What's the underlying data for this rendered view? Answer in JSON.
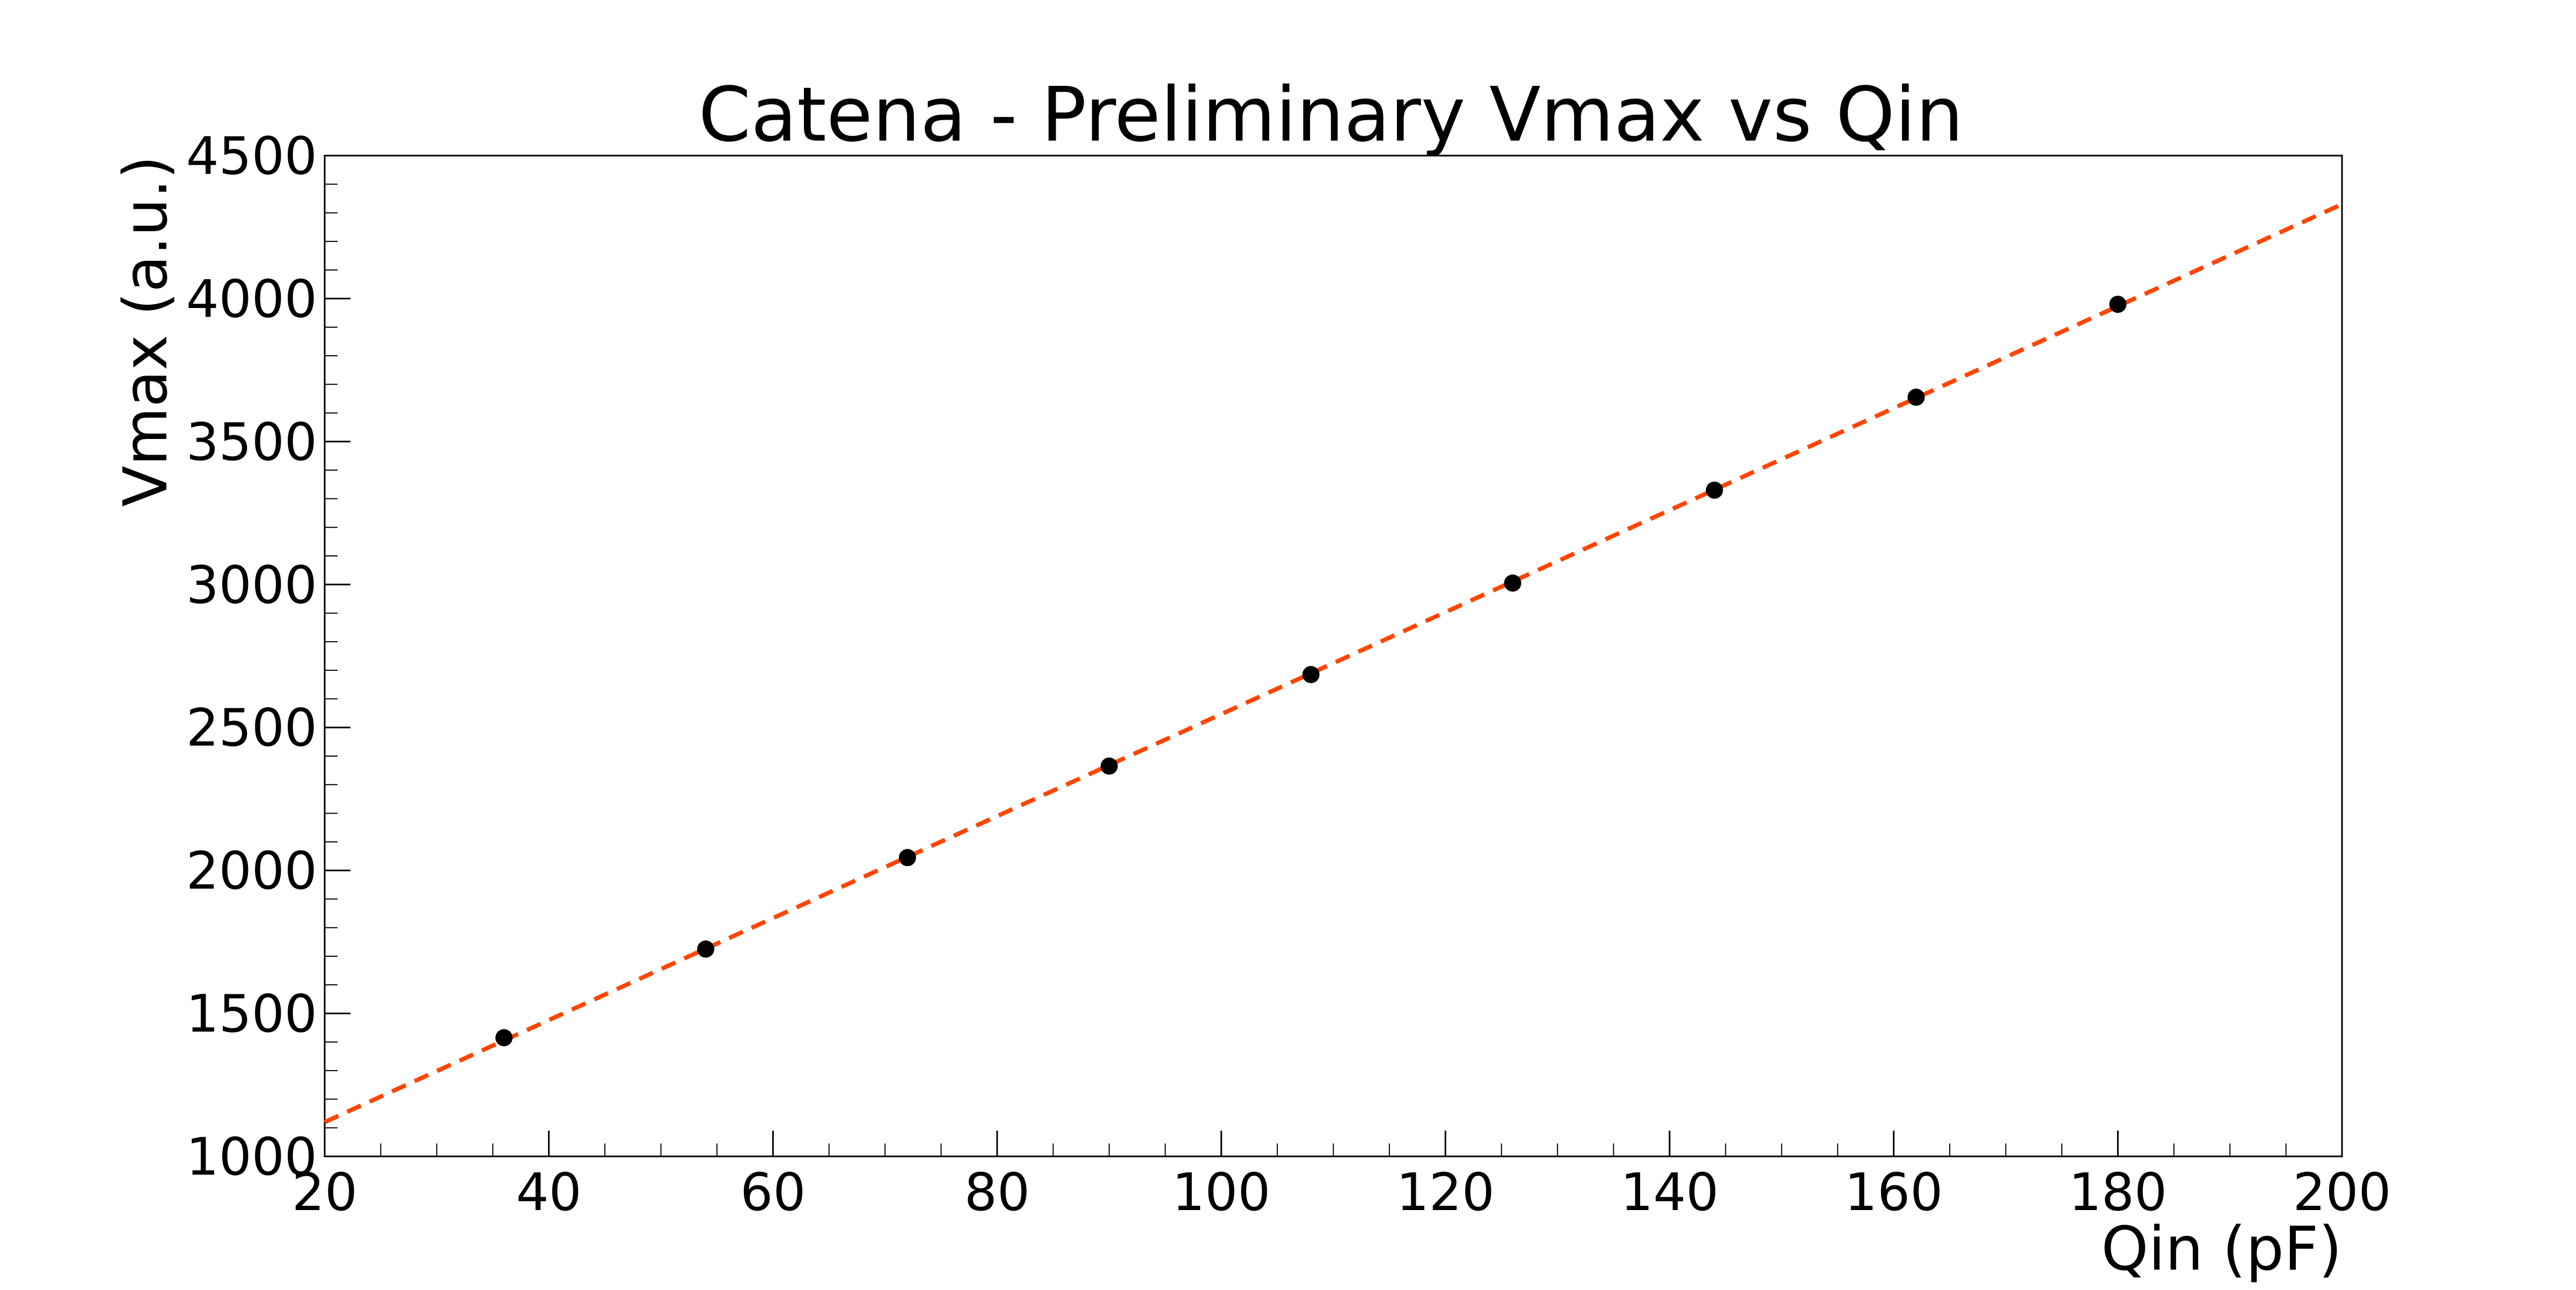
{
  "chart_data": {
    "type": "scatter",
    "title": "Catena - Preliminary Vmax vs Qin",
    "xlabel": "Qin (pF)",
    "ylabel": "Vmax (a.u.)",
    "xlim": [
      20,
      200
    ],
    "ylim": [
      1000,
      4500
    ],
    "x_ticks": [
      "20",
      "40",
      "60",
      "80",
      "100",
      "120",
      "140",
      "160",
      "180",
      "200"
    ],
    "y_ticks": [
      "1000",
      "1500",
      "2000",
      "2500",
      "3000",
      "3500",
      "4000",
      "4500"
    ],
    "grid": false,
    "legend": "none",
    "series": [
      {
        "kind": "points",
        "color": "#000000",
        "points": [
          {
            "x": 36,
            "y": 1415
          },
          {
            "x": 54,
            "y": 1725
          },
          {
            "x": 72,
            "y": 2045
          },
          {
            "x": 90,
            "y": 2365
          },
          {
            "x": 108,
            "y": 2685
          },
          {
            "x": 126,
            "y": 3005
          },
          {
            "x": 144,
            "y": 3330
          },
          {
            "x": 162,
            "y": 3655
          },
          {
            "x": 180,
            "y": 3980
          }
        ]
      },
      {
        "kind": "fit-line",
        "style": "dashed",
        "color": "#ff4500",
        "points": [
          {
            "x": 20,
            "y": 1120
          },
          {
            "x": 200,
            "y": 4330
          }
        ]
      }
    ]
  }
}
